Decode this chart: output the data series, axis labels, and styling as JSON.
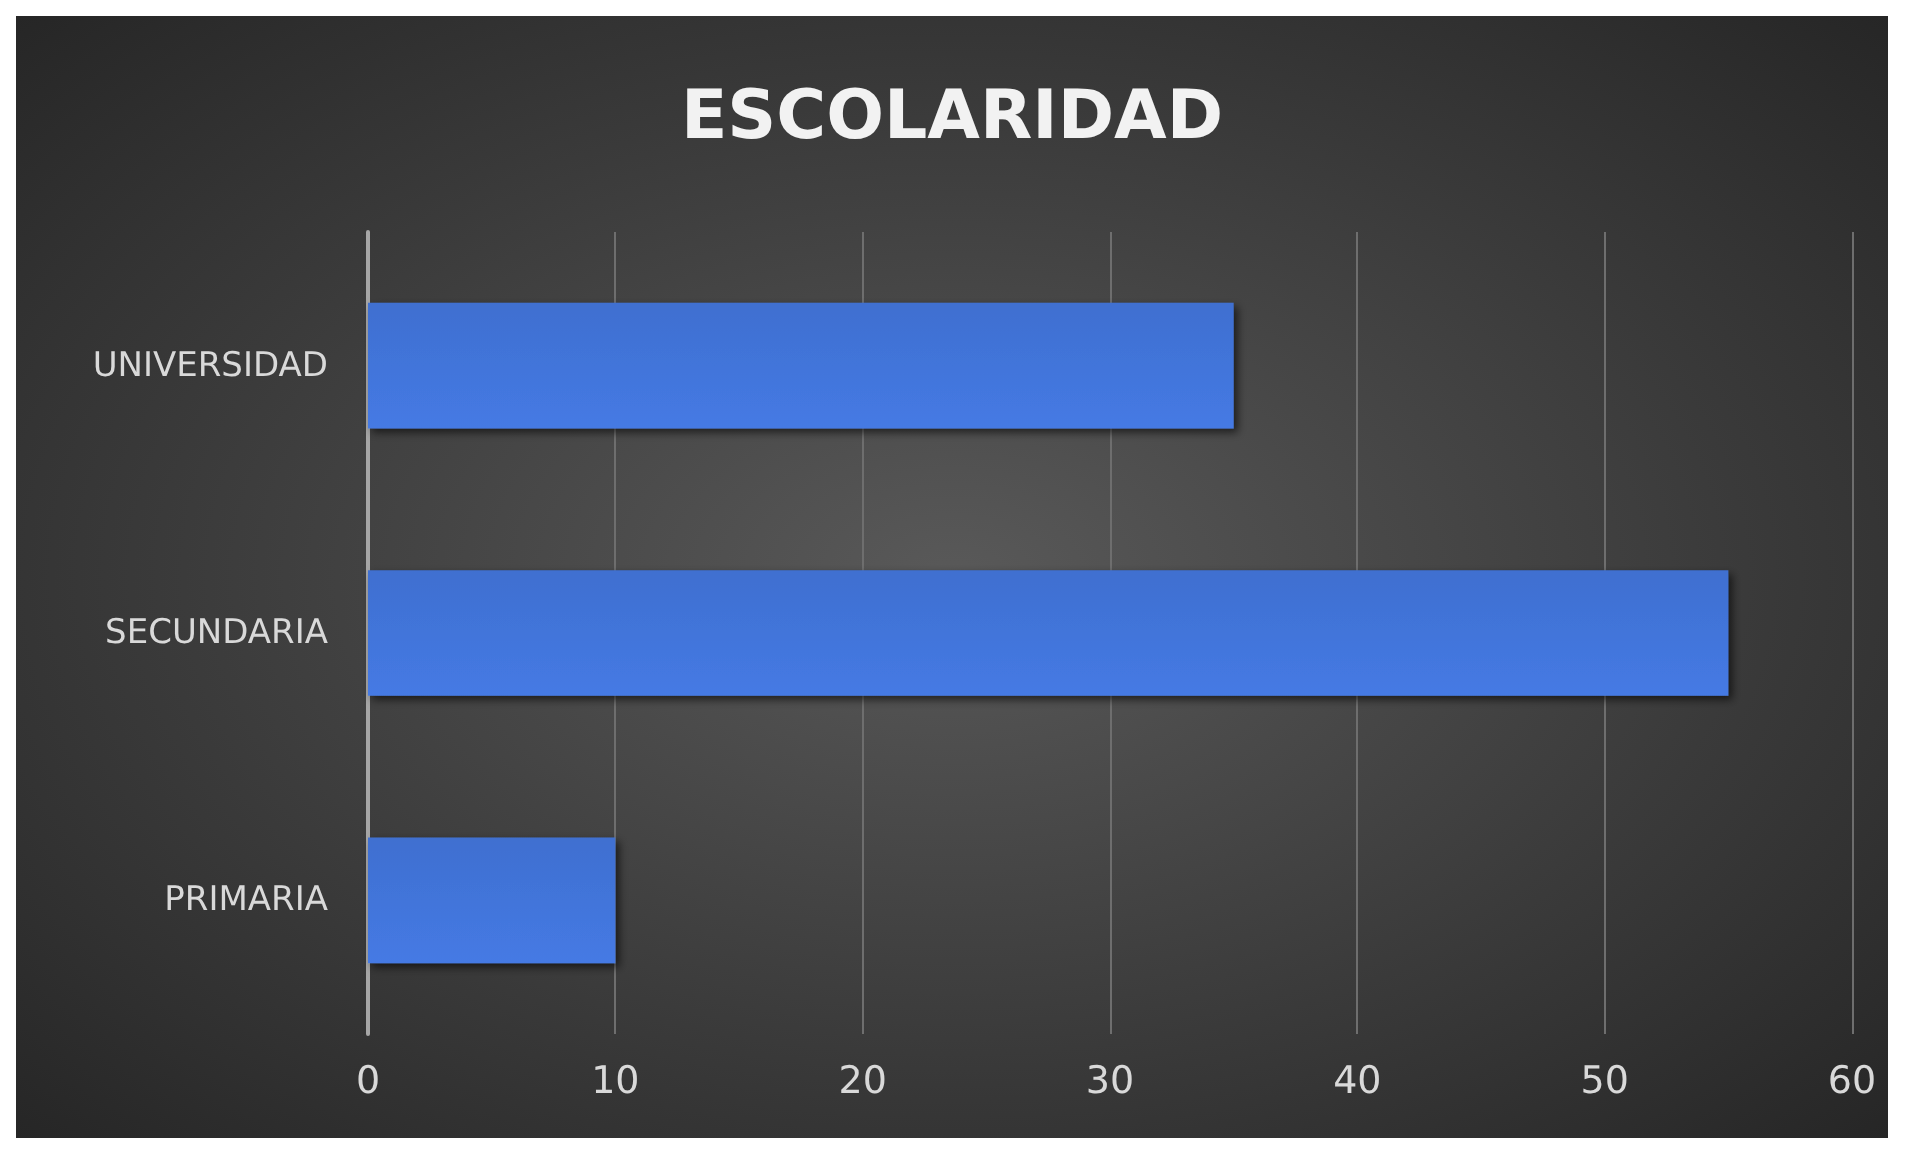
{
  "chart_data": {
    "type": "bar",
    "orientation": "horizontal",
    "title": "ESCOLARIDAD",
    "categories": [
      "UNIVERSIDAD",
      "SECUNDARIA",
      "PRIMARIA"
    ],
    "values": [
      35,
      55,
      10
    ],
    "color": "#3f6fd0",
    "xlim": [
      0,
      60
    ],
    "xticks": [
      0,
      10,
      20,
      30,
      40,
      50,
      60
    ],
    "grid": "x"
  }
}
